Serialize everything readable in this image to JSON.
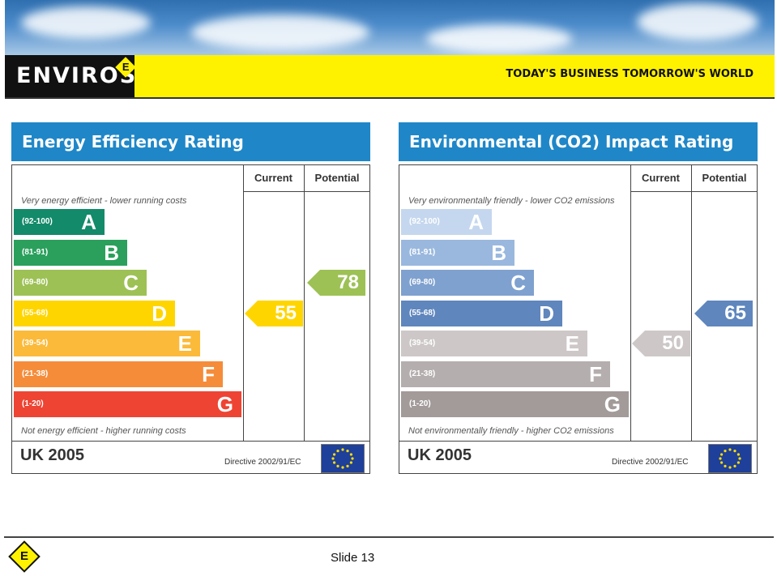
{
  "header": {
    "brand": "ENVIROS",
    "brand_mark": "E",
    "tagline": "TODAY'S BUSINESS TOMORROW'S WORLD"
  },
  "panels": [
    {
      "title": "Energy Efficiency Rating",
      "col_current": "Current",
      "col_potential": "Potential",
      "top_caption": "Very energy efficient - lower running costs",
      "bottom_caption": "Not energy efficient - higher running costs",
      "bands": [
        {
          "range": "(92-100)",
          "letter": "A",
          "color": "#138a6a"
        },
        {
          "range": "(81-91)",
          "letter": "B",
          "color": "#2aa05c"
        },
        {
          "range": "(69-80)",
          "letter": "C",
          "color": "#9dc155"
        },
        {
          "range": "(55-68)",
          "letter": "D",
          "color": "#ffd500"
        },
        {
          "range": "(39-54)",
          "letter": "E",
          "color": "#fbba3a"
        },
        {
          "range": "(21-38)",
          "letter": "F",
          "color": "#f58c3a"
        },
        {
          "range": "(1-20)",
          "letter": "G",
          "color": "#ee4433"
        }
      ],
      "current": {
        "value": "55",
        "color": "#ffd500"
      },
      "potential": {
        "value": "78",
        "color": "#9dc155"
      },
      "footer": "UK 2005",
      "directive": "Directive 2002/91/EC"
    },
    {
      "title": "Environmental (CO2) Impact Rating",
      "col_current": "Current",
      "col_potential": "Potential",
      "top_caption": "Very environmentally friendly - lower CO2 emissions",
      "bottom_caption": "Not environmentally friendly - higher CO2 emissions",
      "bands": [
        {
          "range": "(92-100)",
          "letter": "A",
          "color": "#c5d7ee"
        },
        {
          "range": "(81-91)",
          "letter": "B",
          "color": "#9ab8de"
        },
        {
          "range": "(69-80)",
          "letter": "C",
          "color": "#7fa1cf"
        },
        {
          "range": "(55-68)",
          "letter": "D",
          "color": "#5f86bd"
        },
        {
          "range": "(39-54)",
          "letter": "E",
          "color": "#cdc7c7"
        },
        {
          "range": "(21-38)",
          "letter": "F",
          "color": "#b5aeae"
        },
        {
          "range": "(1-20)",
          "letter": "G",
          "color": "#a39a9a"
        }
      ],
      "current": {
        "value": "50",
        "color": "#cdc7c7"
      },
      "potential": {
        "value": "65",
        "color": "#5f86bd"
      },
      "footer": "UK 2005",
      "directive": "Directive 2002/91/EC"
    }
  ],
  "footer": {
    "slide_label": "Slide 13",
    "mark": "E"
  }
}
